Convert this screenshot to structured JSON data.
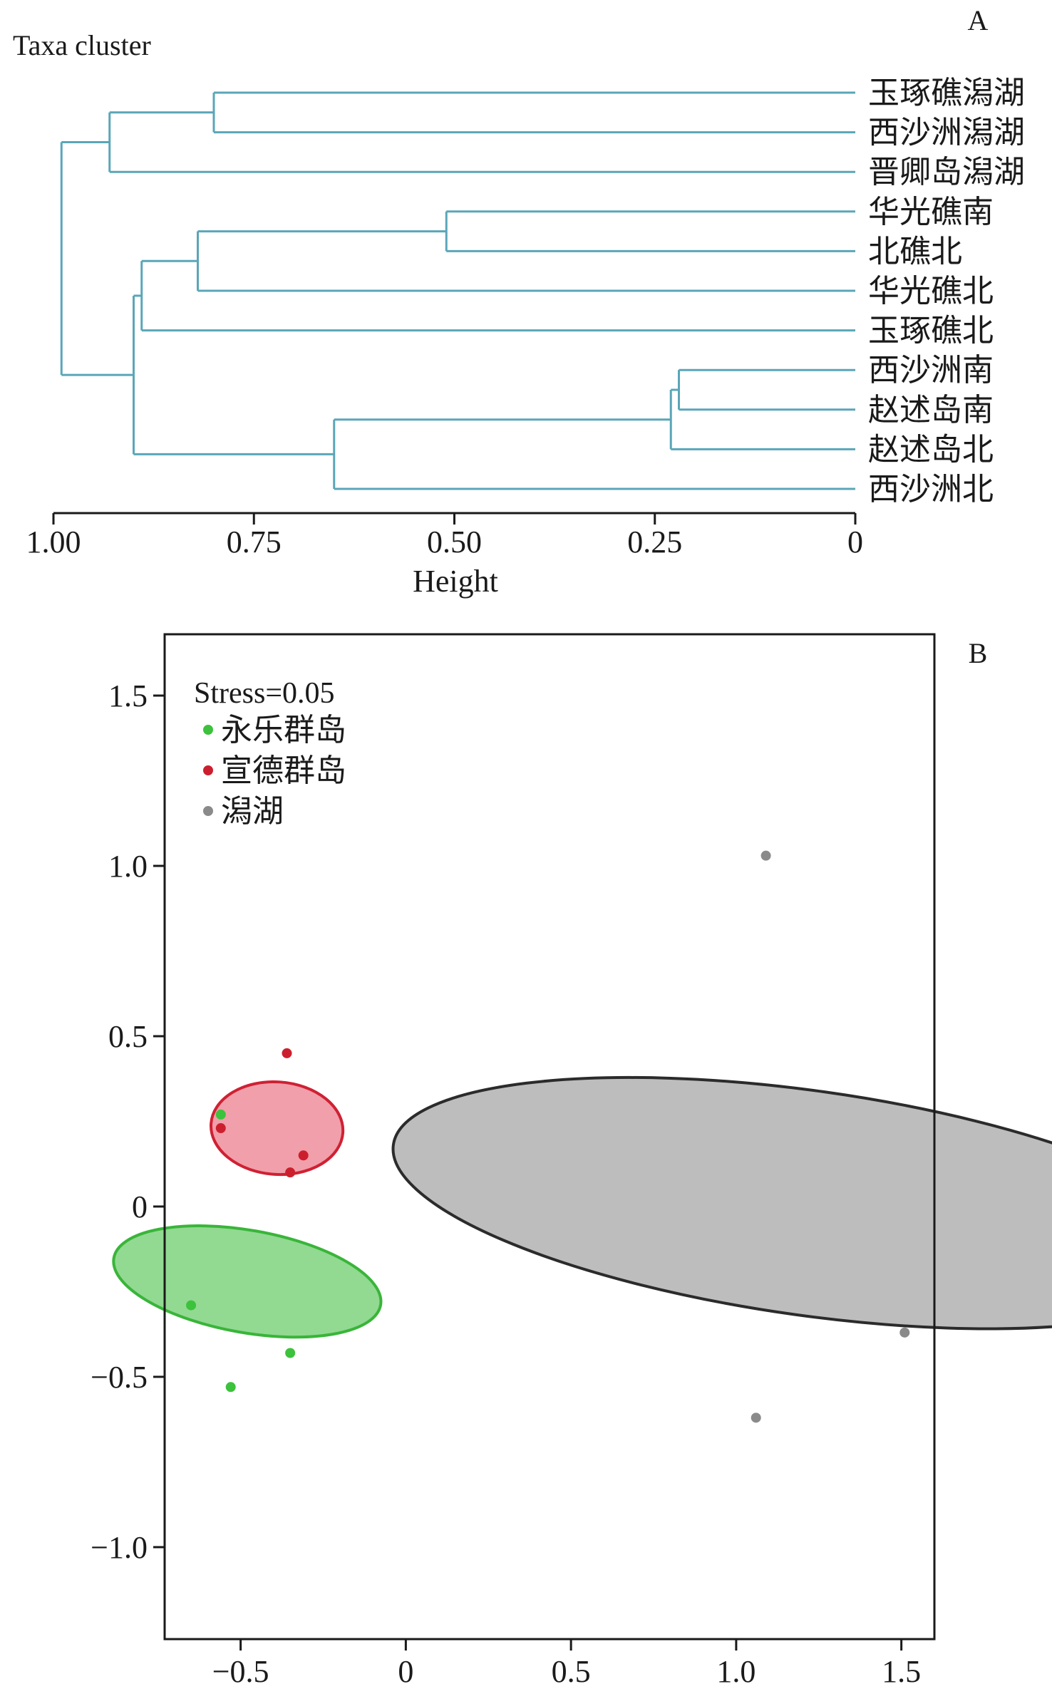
{
  "chart_data": [
    {
      "type": "dendrogram",
      "panel_label": "A",
      "title": "Taxa cluster",
      "xlabel": "Height",
      "xlim": [
        1.0,
        0.0
      ],
      "x_ticks": [
        {
          "value": 1.0,
          "label": "1.00"
        },
        {
          "value": 0.75,
          "label": "0.75"
        },
        {
          "value": 0.5,
          "label": "0.50"
        },
        {
          "value": 0.25,
          "label": "0.25"
        },
        {
          "value": 0,
          "label": "0"
        }
      ],
      "leaves": [
        "玉琢礁潟湖",
        "西沙洲潟湖",
        "晋卿岛潟湖",
        "华光礁南",
        "北礁北",
        "华光礁北",
        "玉琢礁北",
        "西沙洲南",
        "赵述岛南",
        "赵述岛北",
        "西沙洲北"
      ],
      "merges": [
        {
          "id": "m1",
          "children": [
            "L0",
            "L1"
          ],
          "height": 0.8
        },
        {
          "id": "m2",
          "children": [
            "m1",
            "L2"
          ],
          "height": 0.93
        },
        {
          "id": "m3",
          "children": [
            "L3",
            "L4"
          ],
          "height": 0.51
        },
        {
          "id": "m4",
          "children": [
            "m3",
            "L5"
          ],
          "height": 0.82
        },
        {
          "id": "m5",
          "children": [
            "L7",
            "L8"
          ],
          "height": 0.22
        },
        {
          "id": "m6",
          "children": [
            "m5",
            "L9"
          ],
          "height": 0.23
        },
        {
          "id": "m7",
          "children": [
            "m6",
            "L10"
          ],
          "height": 0.65
        },
        {
          "id": "m8",
          "children": [
            "m4",
            "L6"
          ],
          "height": 0.89
        },
        {
          "id": "m9",
          "children": [
            "m8",
            "m7"
          ],
          "height": 0.9
        },
        {
          "id": "m10",
          "children": [
            "m2",
            "m9"
          ],
          "height": 0.99
        }
      ],
      "line_color": "#5aa6b8"
    },
    {
      "type": "scatter",
      "panel_label": "B",
      "annotation": "Stress=0.05",
      "xlim": [
        -0.73,
        1.6
      ],
      "ylim": [
        -1.27,
        1.68
      ],
      "x_ticks": [
        {
          "value": -0.5,
          "label": "−0.5"
        },
        {
          "value": 0,
          "label": "0"
        },
        {
          "value": 0.5,
          "label": "0.5"
        },
        {
          "value": 1.0,
          "label": "1.0"
        },
        {
          "value": 1.5,
          "label": "1.5"
        }
      ],
      "y_ticks": [
        {
          "value": 1.5,
          "label": "1.5"
        },
        {
          "value": 1.0,
          "label": "1.0"
        },
        {
          "value": 0.5,
          "label": "0.5"
        },
        {
          "value": 0,
          "label": "0"
        },
        {
          "value": -0.5,
          "label": "−0.5"
        },
        {
          "value": -1.0,
          "label": "−1.0"
        }
      ],
      "legend_position": "top-left",
      "series": [
        {
          "name": "永乐群岛",
          "color": "#3cc23c",
          "fill": "#7fd27f",
          "stroke": "#39b539",
          "points": [
            {
              "x": -0.56,
              "y": 0.27
            },
            {
              "x": -0.65,
              "y": -0.29
            },
            {
              "x": -0.35,
              "y": -0.43
            },
            {
              "x": -0.53,
              "y": -0.53
            }
          ],
          "ellipse": {
            "cx": -0.48,
            "cy": -0.22,
            "rx": 0.155,
            "ry": 0.41,
            "angle_deg": 100
          }
        },
        {
          "name": "宣德群岛",
          "color": "#cc1f2e",
          "fill": "#ee8e9b",
          "stroke": "#cf2133",
          "points": [
            {
              "x": -0.36,
              "y": 0.45
            },
            {
              "x": -0.56,
              "y": 0.23
            },
            {
              "x": -0.31,
              "y": 0.15
            },
            {
              "x": -0.35,
              "y": 0.1
            }
          ],
          "ellipse": {
            "cx": -0.39,
            "cy": 0.23,
            "rx": 0.14,
            "ry": 0.2,
            "angle_deg": 94
          }
        },
        {
          "name": "潟湖",
          "color": "#8a8a8a",
          "fill": "#b1b1b3",
          "stroke": "#2b2b2b",
          "points": [
            {
              "x": 1.09,
              "y": 1.03
            },
            {
              "x": 1.51,
              "y": -0.37
            },
            {
              "x": 1.06,
              "y": -0.62
            }
          ],
          "ellipse": {
            "cx": 1.22,
            "cy": 0.01,
            "rx": 0.34,
            "ry": 1.27,
            "angle_deg": 98
          }
        }
      ]
    }
  ]
}
